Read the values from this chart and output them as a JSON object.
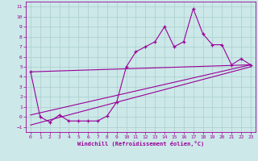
{
  "x_data": [
    0,
    1,
    2,
    3,
    4,
    5,
    6,
    7,
    8,
    9,
    10,
    11,
    12,
    13,
    14,
    15,
    16,
    17,
    18,
    19,
    20,
    21,
    22,
    23
  ],
  "y_main": [
    4.5,
    0.0,
    -0.5,
    0.2,
    -0.4,
    -0.4,
    -0.4,
    -0.4,
    0.1,
    1.5,
    5.0,
    6.5,
    7.0,
    7.5,
    9.0,
    7.0,
    7.5,
    10.8,
    8.3,
    7.2,
    7.2,
    5.2,
    5.8,
    5.2
  ],
  "y_line1_start": 4.5,
  "y_line1_end": 5.2,
  "y_line2_start": 0.2,
  "y_line2_end": 5.2,
  "y_line3_start": -0.8,
  "y_line3_end": 5.0,
  "line_color": "#990099",
  "bg_color": "#cce8e8",
  "grid_color": "#aacece",
  "xlabel": "Windchill (Refroidissement éolien,°C)",
  "ylim": [
    -1.5,
    11.5
  ],
  "xlim": [
    -0.5,
    23.5
  ],
  "yticks": [
    -1,
    0,
    1,
    2,
    3,
    4,
    5,
    6,
    7,
    8,
    9,
    10,
    11
  ],
  "xticks": [
    0,
    1,
    2,
    3,
    4,
    5,
    6,
    7,
    8,
    9,
    10,
    11,
    12,
    13,
    14,
    15,
    16,
    17,
    18,
    19,
    20,
    21,
    22,
    23
  ]
}
